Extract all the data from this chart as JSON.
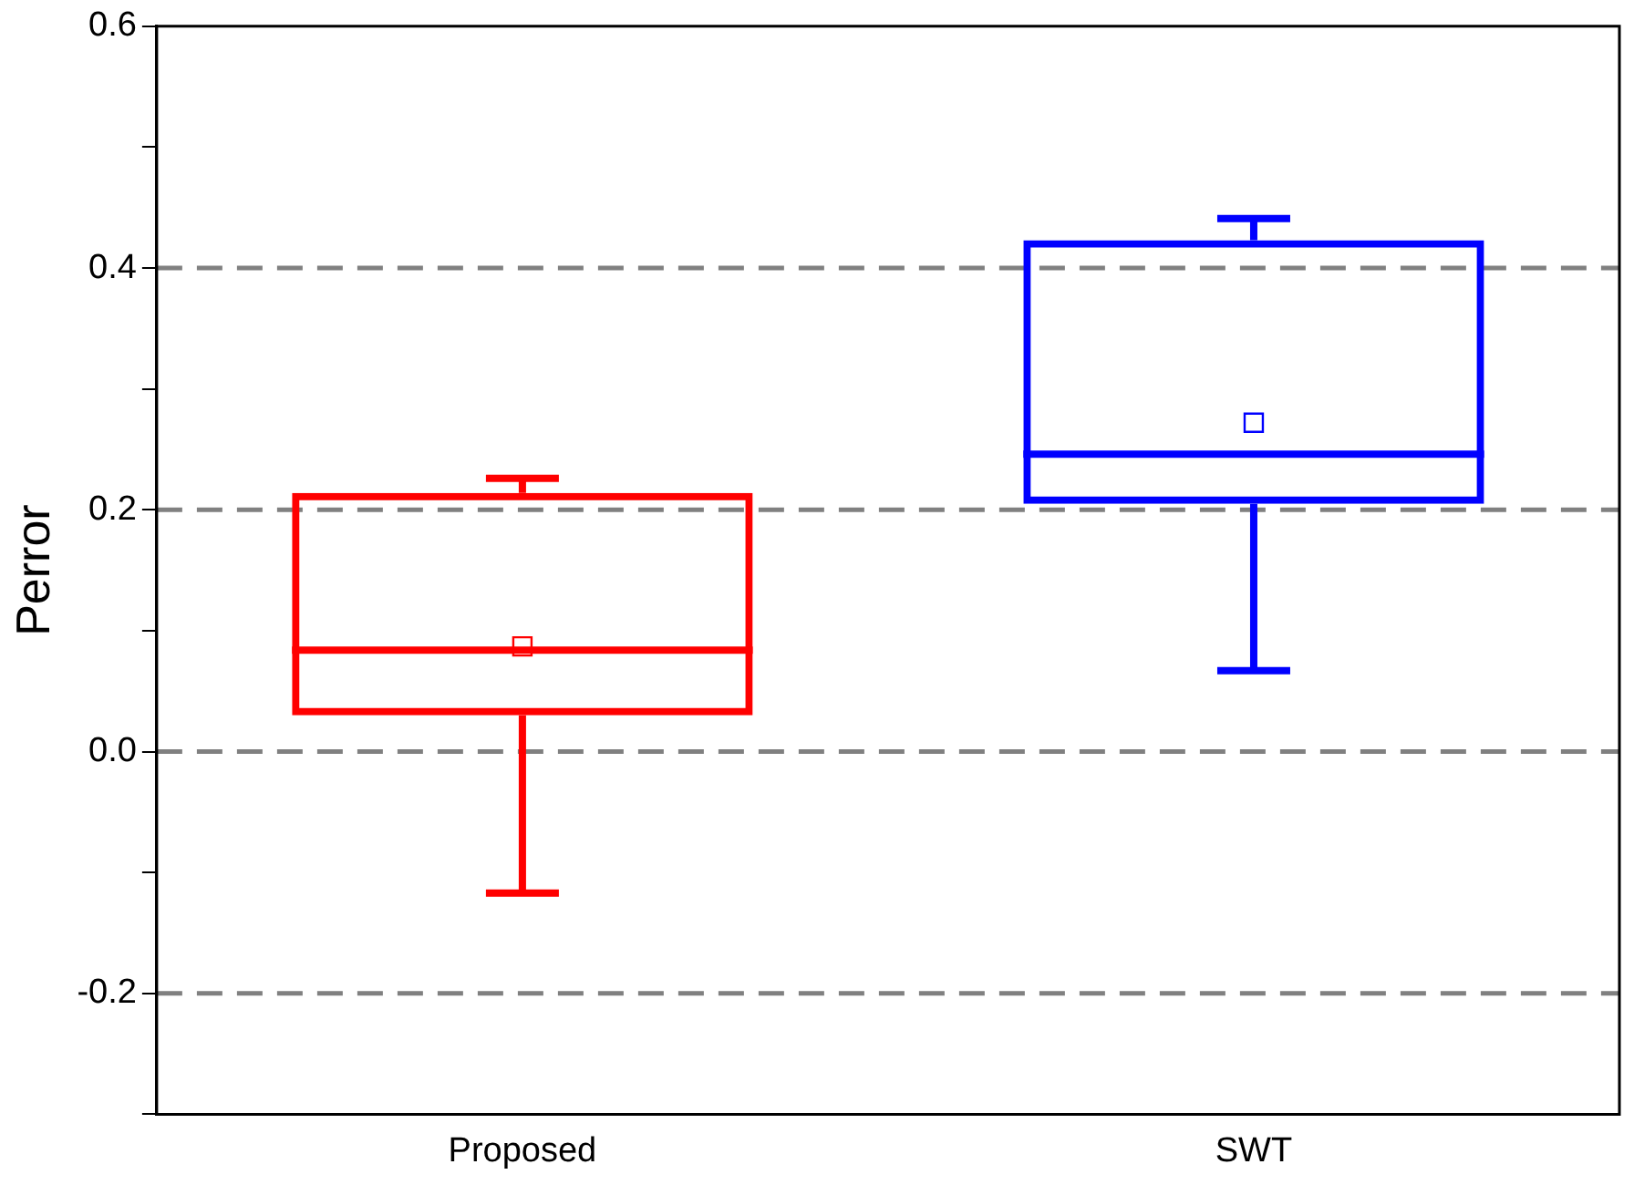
{
  "chart_data": {
    "type": "box",
    "ylabel": "Perror",
    "categories": [
      "Proposed",
      "SWT"
    ],
    "boxes": [
      {
        "low": -0.117,
        "q1": 0.03,
        "median": 0.084,
        "q3": 0.214,
        "high": 0.226,
        "mean": 0.087
      },
      {
        "low": 0.067,
        "q1": 0.205,
        "median": 0.246,
        "q3": 0.423,
        "high": 0.441,
        "mean": 0.272
      }
    ],
    "colors": [
      "#ff0000",
      "#0000ff"
    ],
    "ylim": [
      -0.3,
      0.6
    ],
    "yticks": [
      {
        "value": -0.3,
        "label": null
      },
      {
        "value": -0.2,
        "label": "-0.2"
      },
      {
        "value": -0.1,
        "label": null
      },
      {
        "value": 0,
        "label": "0.0"
      },
      {
        "value": 0.1,
        "label": null
      },
      {
        "value": 0.2,
        "label": "0.2"
      },
      {
        "value": 0.3,
        "label": null
      },
      {
        "value": 0.4,
        "label": "0.4"
      },
      {
        "value": 0.5,
        "label": null
      },
      {
        "value": 0.6,
        "label": "0.6"
      }
    ],
    "ref_lines": [
      {
        "axis": "y",
        "value": -0.2,
        "color": "#808080",
        "line_style": "dashed"
      },
      {
        "axis": "y",
        "value": 0,
        "color": "#808080",
        "line_style": "dashed"
      },
      {
        "axis": "y",
        "value": 0.2,
        "color": "#808080",
        "line_style": "dashed"
      },
      {
        "axis": "y",
        "value": 0.4,
        "color": "#808080",
        "line_style": "dashed"
      }
    ],
    "marker": "square",
    "legend": false,
    "grid": false
  }
}
